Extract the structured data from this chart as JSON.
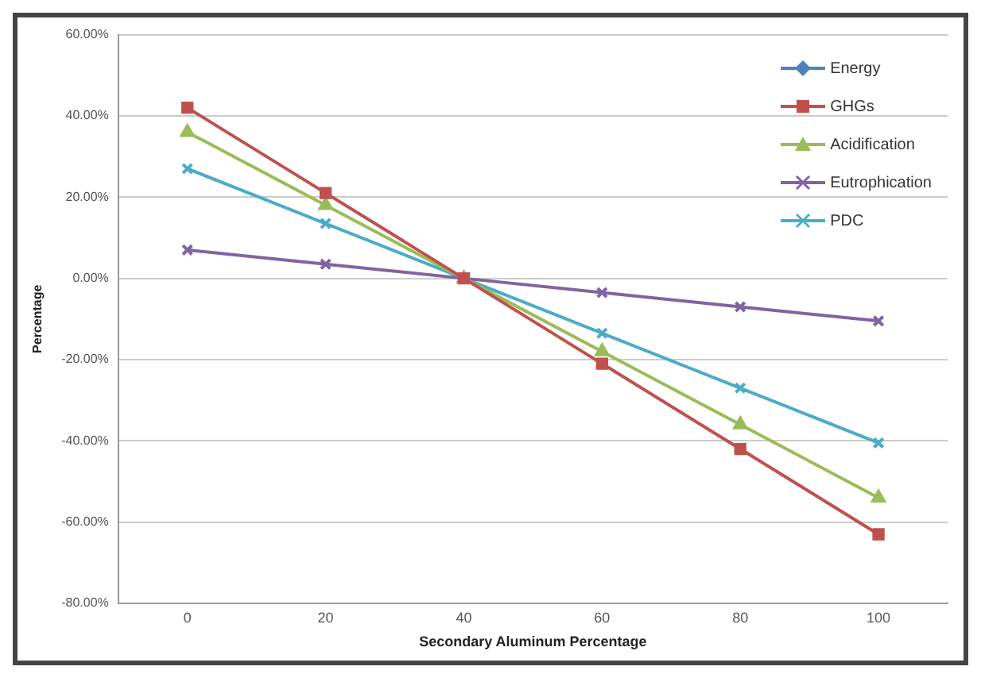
{
  "chart_data": {
    "type": "line",
    "xlabel": "Secondary Aluminum Percentage",
    "ylabel": "Percentage",
    "categories": [
      "0",
      "20",
      "40",
      "60",
      "80",
      "100"
    ],
    "series": [
      {
        "name": "Energy",
        "color": "#4f81bd",
        "marker": "diamond",
        "values": [
          null,
          null,
          null,
          null,
          null,
          null
        ]
      },
      {
        "name": "GHGs",
        "color": "#c0504d",
        "marker": "square",
        "values": [
          42,
          21,
          0,
          -21,
          -42,
          -63
        ]
      },
      {
        "name": "Acidification",
        "color": "#9bbb59",
        "marker": "triangle",
        "values": [
          36,
          18,
          0,
          -18,
          -36,
          -54
        ]
      },
      {
        "name": "Eutrophication",
        "color": "#8064a2",
        "marker": "cross",
        "values": [
          7,
          3.5,
          0,
          -3.5,
          -7,
          -10.5
        ]
      },
      {
        "name": "PDC",
        "color": "#4bacc6",
        "marker": "cross",
        "values": [
          27,
          13.5,
          0,
          -13.5,
          -27,
          -40.5
        ]
      }
    ],
    "ylim": [
      -80,
      60
    ],
    "yticks": [
      {
        "value": -80,
        "label": "-80.00%"
      },
      {
        "value": -60,
        "label": "-60.00%"
      },
      {
        "value": -40,
        "label": "-40.00%"
      },
      {
        "value": -20,
        "label": "-20.00%"
      },
      {
        "value": 0,
        "label": "0.00%"
      },
      {
        "value": 20,
        "label": "20.00%"
      },
      {
        "value": 40,
        "label": "40.00%"
      },
      {
        "value": 60,
        "label": "60.00%"
      }
    ],
    "grid": "y",
    "legend": "top right"
  }
}
